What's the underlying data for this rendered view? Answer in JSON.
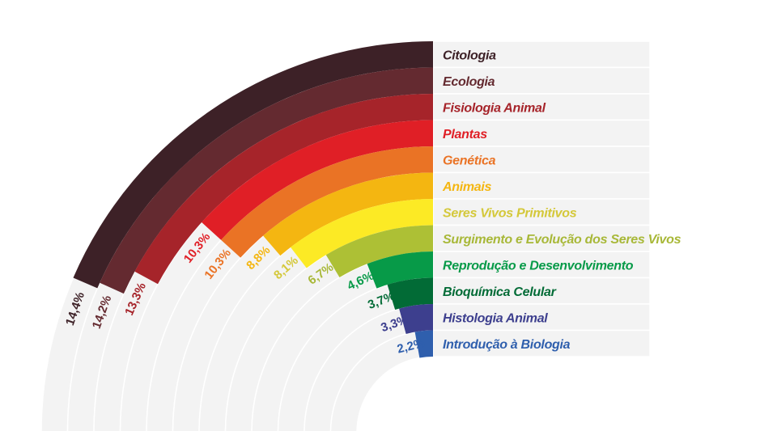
{
  "chart_data": {
    "type": "radial-bar",
    "title": "",
    "unit": "%",
    "categories": [
      "Citologia",
      "Ecologia",
      "Fisiologia Animal",
      "Plantas",
      "Genética",
      "Animais",
      "Seres Vivos Primitivos",
      "Surgimento e Evolução dos Seres Vivos",
      "Reprodução e Desenvolvimento",
      "Bioquímica Celular",
      "Histologia Animal",
      "Introdução à Biologia"
    ],
    "values": [
      14.4,
      14.2,
      13.3,
      10.3,
      10.3,
      8.8,
      8.1,
      6.7,
      4.6,
      3.7,
      3.3,
      2.2
    ],
    "value_labels": [
      "14,4%",
      "14,2%",
      "13,3%",
      "10,3%",
      "10,3%",
      "8,8%",
      "8,1%",
      "6,7%",
      "4,6%",
      "3,7%",
      "3,3%",
      "2,2%"
    ],
    "colors": [
      "#3d2127",
      "#642a30",
      "#a6242a",
      "#e01f26",
      "#ea7325",
      "#f4b611",
      "#fcea25",
      "#adc035",
      "#079a48",
      "#026b36",
      "#3d3f8e",
      "#2f5fad"
    ],
    "label_colors": [
      "#3d2127",
      "#642a30",
      "#a6242a",
      "#e01f26",
      "#ea7325",
      "#f4b611",
      "#d4c83a",
      "#a8b838",
      "#079a48",
      "#026b36",
      "#3d3f8e",
      "#2f5fad"
    ],
    "track_color": "#f3f3f3"
  }
}
